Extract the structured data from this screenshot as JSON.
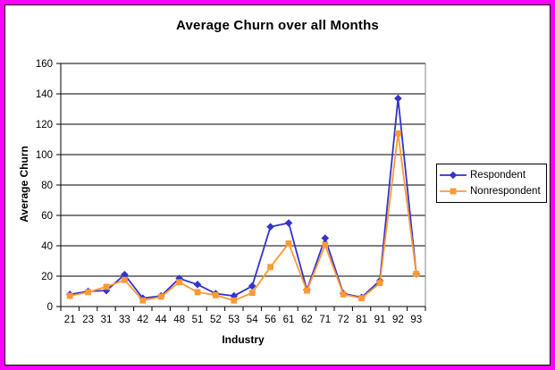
{
  "window": {
    "outer_border_color": "#FF00FF",
    "inner_border_color": "#000000",
    "background": "#FFFFFF"
  },
  "chart_data": {
    "type": "line",
    "title": "Average Churn over all Months",
    "xlabel": "Industry",
    "ylabel": "Average Churn",
    "categories": [
      "21",
      "23",
      "31",
      "33",
      "42",
      "44",
      "48",
      "51",
      "52",
      "53",
      "54",
      "56",
      "61",
      "62",
      "71",
      "72",
      "81",
      "91",
      "92",
      "93"
    ],
    "series": [
      {
        "name": "Respondent",
        "color": "#3333CC",
        "marker": "diamond",
        "values": [
          8,
          10,
          10.5,
          21,
          5.5,
          7,
          18.5,
          14.5,
          8.5,
          7,
          13.5,
          52.5,
          55,
          11,
          45,
          8.5,
          6,
          17,
          137,
          21.5
        ]
      },
      {
        "name": "Nonrespondent",
        "color": "#FF9933",
        "marker": "square",
        "values": [
          7,
          9.5,
          13,
          17.5,
          4,
          6.5,
          16,
          9.5,
          7.5,
          4,
          9,
          26,
          41.5,
          10.5,
          40.5,
          8,
          5.5,
          15.5,
          114,
          21.5
        ]
      }
    ],
    "ylim": [
      0,
      160
    ],
    "ytick_step": 20,
    "ytick_labels": [
      "0",
      "20",
      "40",
      "60",
      "80",
      "100",
      "120",
      "140",
      "160"
    ],
    "grid": true,
    "gridline_color": "#000000",
    "legend_position": "right"
  }
}
